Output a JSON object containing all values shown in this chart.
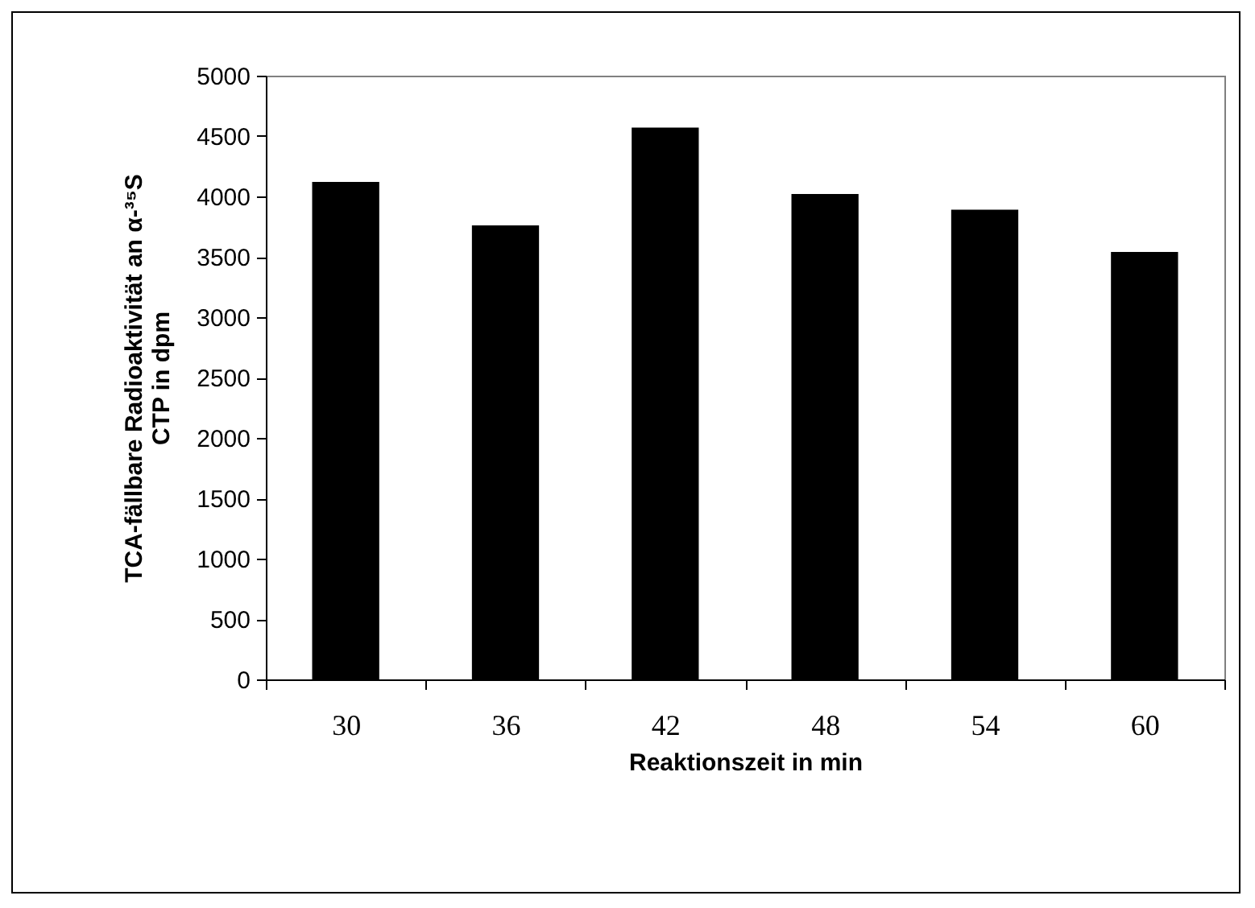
{
  "chart_data": {
    "type": "bar",
    "xlabel": "Reaktionszeit in min",
    "ylabel": "TCA-fällbare Radioaktivität an α-³⁵S\nCTP in dpm",
    "categories": [
      "30",
      "36",
      "42",
      "48",
      "54",
      "60"
    ],
    "values": [
      4120,
      3760,
      4570,
      4020,
      3890,
      3540
    ],
    "color": "#000000",
    "ylim": [
      0,
      5000
    ],
    "yticks": [
      0,
      500,
      1000,
      1500,
      2000,
      2500,
      3000,
      3500,
      4000,
      4500,
      5000
    ],
    "grid": false
  }
}
